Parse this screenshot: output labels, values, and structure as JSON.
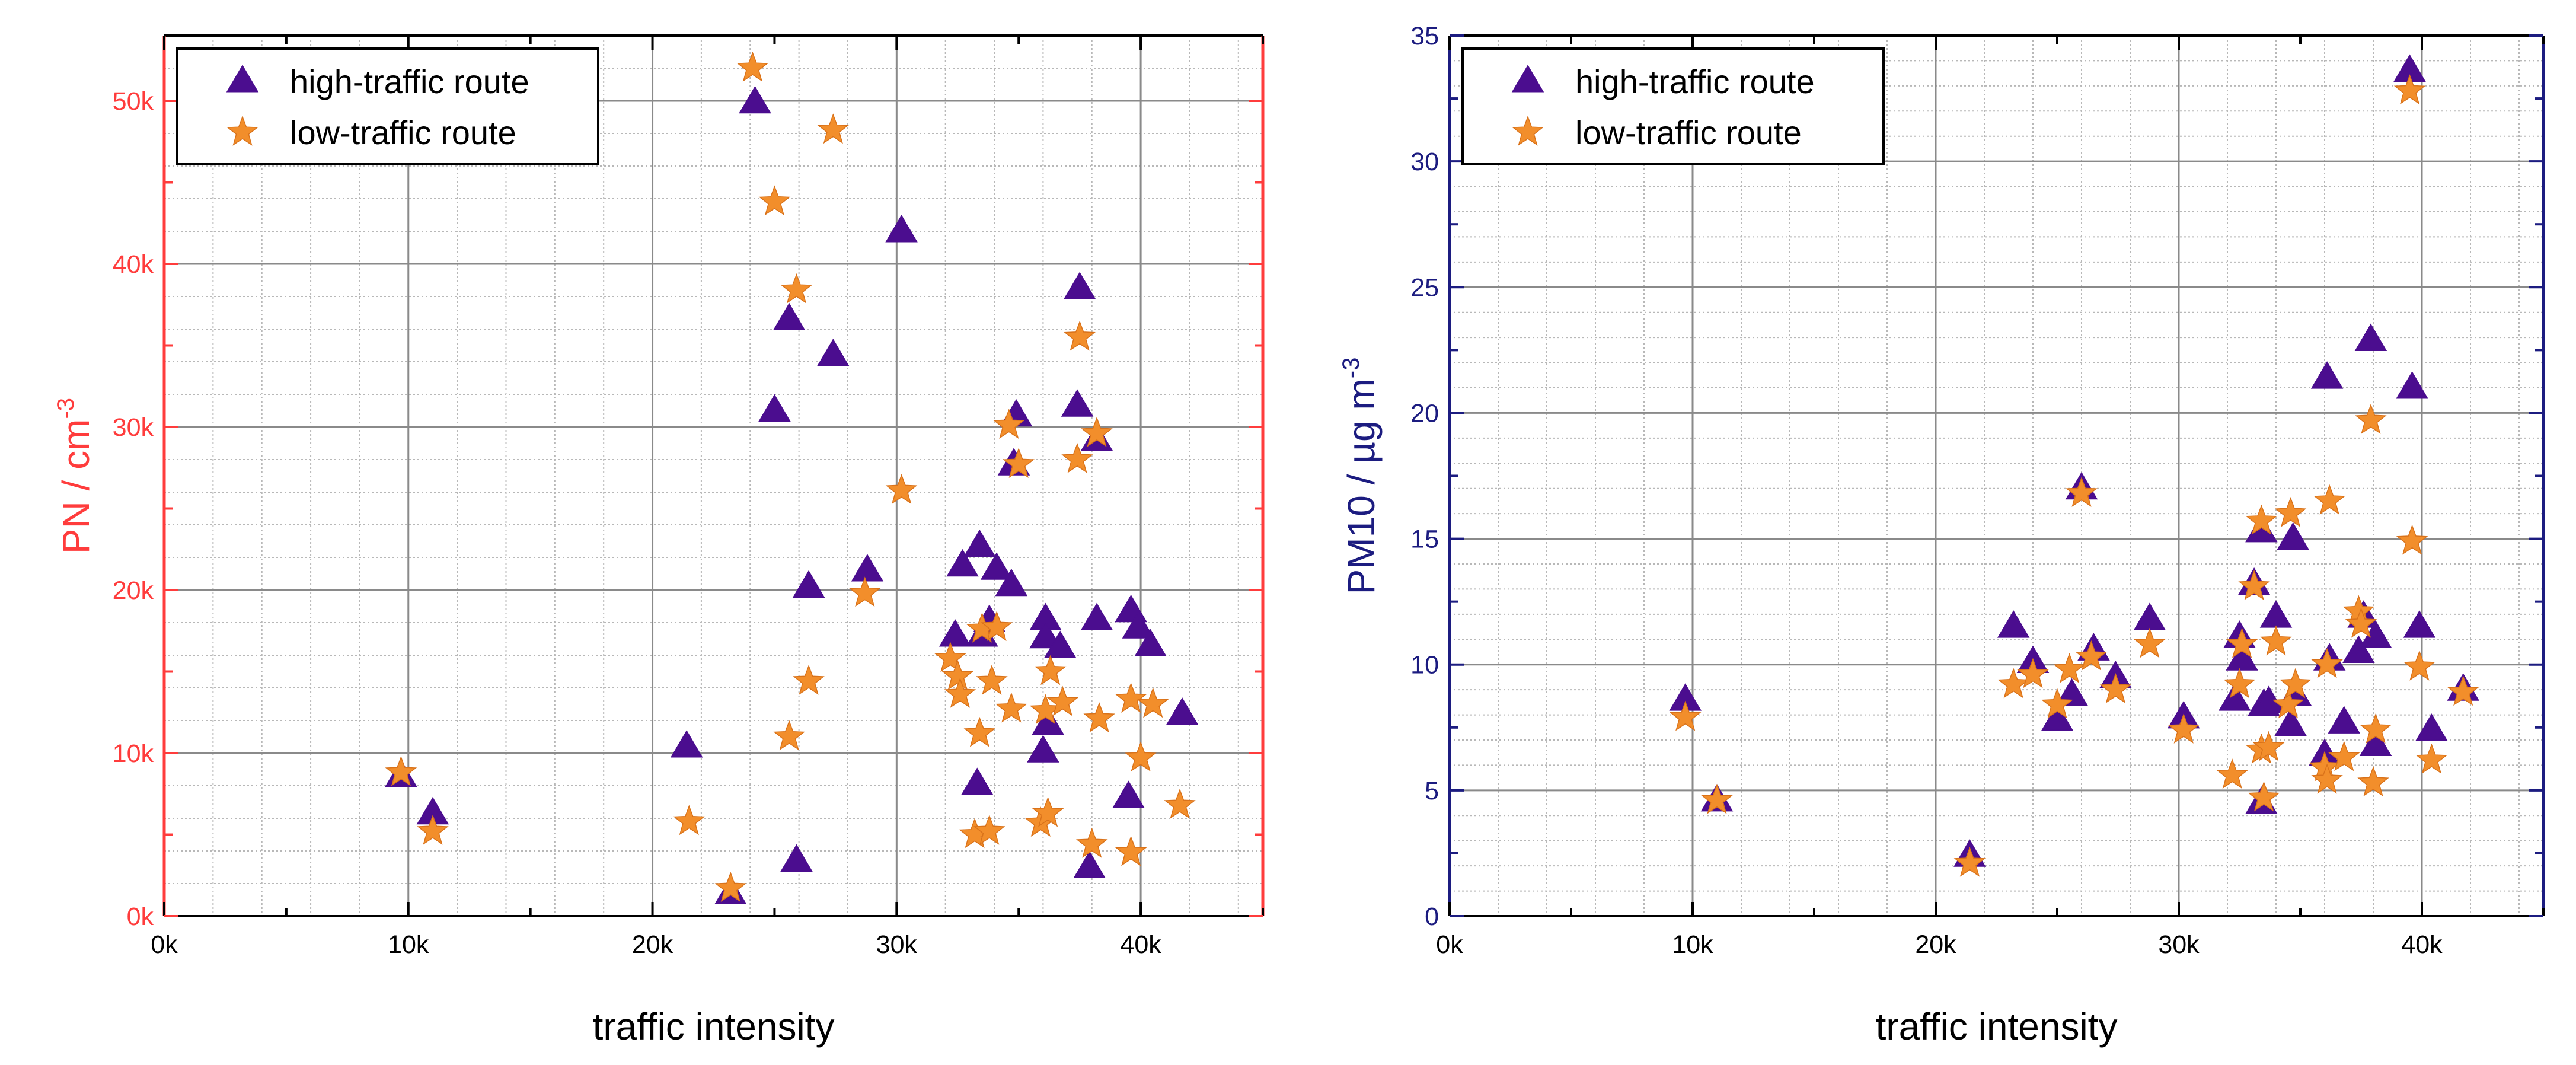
{
  "chart_data": [
    {
      "type": "scatter",
      "xlabel": "traffic intensity",
      "ylabel": "PN / cm",
      "ylabel_sup": "-3",
      "ylabel_color": "#ff3c3c",
      "xlim": [
        0,
        45000
      ],
      "ylim": [
        0,
        54000
      ],
      "x_ticks": [
        0,
        10000,
        20000,
        30000,
        40000
      ],
      "x_tick_labels": [
        "0k",
        "10k",
        "20k",
        "30k",
        "40k"
      ],
      "y_ticks": [
        0,
        10000,
        20000,
        30000,
        40000,
        50000
      ],
      "y_tick_labels": [
        "0k",
        "10k",
        "20k",
        "30k",
        "40k",
        "50k"
      ],
      "grid": true,
      "legend_position": "top-left",
      "series": [
        {
          "name": "high-traffic route",
          "marker": "triangle",
          "color": "#4b0d8f",
          "points": [
            [
              9700,
              8600
            ],
            [
              11000,
              6300
            ],
            [
              21400,
              10400
            ],
            [
              23200,
              1400
            ],
            [
              24200,
              49900
            ],
            [
              25000,
              31000
            ],
            [
              25600,
              36600
            ],
            [
              25900,
              3400
            ],
            [
              26400,
              20200
            ],
            [
              27400,
              34400
            ],
            [
              28800,
              21200
            ],
            [
              30200,
              42000
            ],
            [
              32400,
              17200
            ],
            [
              32700,
              21500
            ],
            [
              33300,
              8100
            ],
            [
              33400,
              22700
            ],
            [
              33500,
              17200
            ],
            [
              33800,
              18100
            ],
            [
              34100,
              21300
            ],
            [
              34700,
              20300
            ],
            [
              34800,
              27700
            ],
            [
              34900,
              30700
            ],
            [
              36000,
              10100
            ],
            [
              36100,
              18200
            ],
            [
              36100,
              17100
            ],
            [
              36200,
              11800
            ],
            [
              36700,
              16500
            ],
            [
              37400,
              31300
            ],
            [
              37500,
              38500
            ],
            [
              37900,
              3000
            ],
            [
              38200,
              29200
            ],
            [
              38200,
              18200
            ],
            [
              39500,
              7300
            ],
            [
              39600,
              18700
            ],
            [
              39900,
              17700
            ],
            [
              40400,
              16600
            ],
            [
              41700,
              12400
            ]
          ]
        },
        {
          "name": "low-traffic route",
          "marker": "star",
          "color": "#f28e2b",
          "points": [
            [
              9700,
              8800
            ],
            [
              11000,
              5200
            ],
            [
              21500,
              5800
            ],
            [
              23200,
              1700
            ],
            [
              24100,
              52000
            ],
            [
              25000,
              43800
            ],
            [
              25600,
              11000
            ],
            [
              25900,
              38400
            ],
            [
              26400,
              14400
            ],
            [
              27400,
              48200
            ],
            [
              28700,
              19800
            ],
            [
              30200,
              26100
            ],
            [
              32200,
              15800
            ],
            [
              32500,
              14700
            ],
            [
              32600,
              13600
            ],
            [
              33200,
              5000
            ],
            [
              33400,
              11200
            ],
            [
              33500,
              17600
            ],
            [
              33800,
              5200
            ],
            [
              33900,
              14400
            ],
            [
              34100,
              17700
            ],
            [
              34600,
              30100
            ],
            [
              34700,
              12700
            ],
            [
              35000,
              27700
            ],
            [
              35900,
              5700
            ],
            [
              36100,
              12600
            ],
            [
              36200,
              6300
            ],
            [
              36300,
              15000
            ],
            [
              36800,
              13100
            ],
            [
              37400,
              28000
            ],
            [
              37500,
              35500
            ],
            [
              38000,
              4400
            ],
            [
              38200,
              29600
            ],
            [
              38300,
              12100
            ],
            [
              39600,
              3900
            ],
            [
              39600,
              13300
            ],
            [
              40000,
              9700
            ],
            [
              40500,
              13000
            ],
            [
              41600,
              6800
            ]
          ]
        }
      ]
    },
    {
      "type": "scatter",
      "xlabel": "traffic intensity",
      "ylabel": "PM10 / µg m",
      "ylabel_sup": "-3",
      "ylabel_color": "#1c1c80",
      "xlim": [
        0,
        45000
      ],
      "ylim": [
        0,
        35
      ],
      "x_ticks": [
        0,
        10000,
        20000,
        30000,
        40000
      ],
      "x_tick_labels": [
        "0k",
        "10k",
        "20k",
        "30k",
        "40k"
      ],
      "y_ticks": [
        0,
        5,
        10,
        15,
        20,
        25,
        30,
        35
      ],
      "y_tick_labels": [
        "0",
        "5",
        "10",
        "15",
        "20",
        "25",
        "30",
        "35"
      ],
      "grid": true,
      "legend_position": "top-left",
      "series": [
        {
          "name": "high-traffic route",
          "marker": "triangle",
          "color": "#4b0d8f",
          "points": [
            [
              9700,
              8.6
            ],
            [
              11000,
              4.6
            ],
            [
              21400,
              2.4
            ],
            [
              23200,
              11.5
            ],
            [
              24000,
              10.1
            ],
            [
              25000,
              7.8
            ],
            [
              25600,
              8.8
            ],
            [
              26000,
              17.0
            ],
            [
              26500,
              10.6
            ],
            [
              27400,
              9.5
            ],
            [
              28800,
              11.8
            ],
            [
              30200,
              7.9
            ],
            [
              32300,
              8.6
            ],
            [
              32500,
              11.1
            ],
            [
              32600,
              10.2
            ],
            [
              33100,
              13.2
            ],
            [
              33400,
              15.3
            ],
            [
              33400,
              4.5
            ],
            [
              33500,
              8.4
            ],
            [
              33700,
              8.5
            ],
            [
              34000,
              11.9
            ],
            [
              34600,
              7.6
            ],
            [
              34700,
              15.0
            ],
            [
              34800,
              8.8
            ],
            [
              36000,
              6.4
            ],
            [
              36100,
              21.4
            ],
            [
              36200,
              10.2
            ],
            [
              36800,
              7.7
            ],
            [
              37400,
              10.5
            ],
            [
              37600,
              11.9
            ],
            [
              37900,
              22.9
            ],
            [
              38100,
              6.8
            ],
            [
              38100,
              11.1
            ],
            [
              39500,
              33.6
            ],
            [
              39600,
              21.0
            ],
            [
              39900,
              11.5
            ],
            [
              40400,
              7.4
            ],
            [
              41700,
              9.0
            ]
          ]
        },
        {
          "name": "low-traffic route",
          "marker": "star",
          "color": "#f28e2b",
          "points": [
            [
              9700,
              7.9
            ],
            [
              11000,
              4.6
            ],
            [
              21400,
              2.1
            ],
            [
              23200,
              9.2
            ],
            [
              24000,
              9.6
            ],
            [
              25000,
              8.4
            ],
            [
              25500,
              9.8
            ],
            [
              26000,
              16.8
            ],
            [
              26400,
              10.3
            ],
            [
              27400,
              9.0
            ],
            [
              28800,
              10.8
            ],
            [
              30200,
              7.4
            ],
            [
              32200,
              5.6
            ],
            [
              32500,
              9.2
            ],
            [
              32600,
              10.8
            ],
            [
              33100,
              13.1
            ],
            [
              33400,
              15.7
            ],
            [
              33400,
              6.6
            ],
            [
              33500,
              4.7
            ],
            [
              33700,
              6.7
            ],
            [
              34000,
              10.9
            ],
            [
              34500,
              8.4
            ],
            [
              34600,
              16.0
            ],
            [
              34800,
              9.2
            ],
            [
              36000,
              5.9
            ],
            [
              36100,
              10.0
            ],
            [
              36100,
              5.4
            ],
            [
              36200,
              16.5
            ],
            [
              36800,
              6.3
            ],
            [
              37400,
              12.1
            ],
            [
              37500,
              11.6
            ],
            [
              37900,
              19.7
            ],
            [
              38000,
              5.3
            ],
            [
              38100,
              7.4
            ],
            [
              39500,
              32.8
            ],
            [
              39600,
              14.9
            ],
            [
              39900,
              9.9
            ],
            [
              40400,
              6.2
            ],
            [
              41700,
              8.9
            ]
          ]
        }
      ]
    }
  ]
}
